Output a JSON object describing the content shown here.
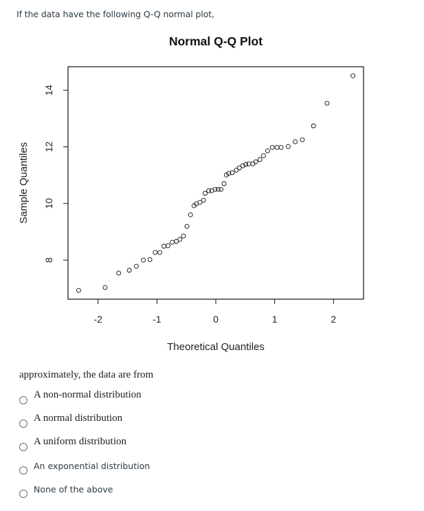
{
  "question": {
    "intro": "If the data have the following Q-Q normal plot,",
    "prompt": "approximately, the data are from",
    "options": [
      {
        "label": "A non-normal distribution",
        "style": "serif",
        "selected": false
      },
      {
        "label": "A normal distribution",
        "style": "serif",
        "selected": false
      },
      {
        "label": "A uniform distribution",
        "style": "serif",
        "selected": false
      },
      {
        "label": "An exponential distribution",
        "style": "sans",
        "selected": false
      },
      {
        "label": "None of the above",
        "style": "sans",
        "selected": false
      }
    ]
  },
  "chart_data": {
    "type": "scatter",
    "title": "Normal Q-Q Plot",
    "xlabel": "Theoretical Quantiles",
    "ylabel": "Sample Quantiles",
    "xlim": [
      -2.51,
      2.51
    ],
    "ylim": [
      6.62,
      14.83
    ],
    "xticks": [
      -2,
      -1,
      0,
      1,
      2
    ],
    "yticks": [
      8,
      10,
      12,
      14
    ],
    "grid": false,
    "legend": null,
    "marker": "open-circle",
    "points": [
      [
        -2.33,
        6.93
      ],
      [
        -1.88,
        7.03
      ],
      [
        -1.65,
        7.54
      ],
      [
        -1.47,
        7.64
      ],
      [
        -1.35,
        7.78
      ],
      [
        -1.23,
        8.0
      ],
      [
        -1.12,
        8.02
      ],
      [
        -1.03,
        8.27
      ],
      [
        -0.95,
        8.27
      ],
      [
        -0.88,
        8.49
      ],
      [
        -0.81,
        8.51
      ],
      [
        -0.74,
        8.63
      ],
      [
        -0.67,
        8.66
      ],
      [
        -0.61,
        8.73
      ],
      [
        -0.55,
        8.85
      ],
      [
        -0.49,
        9.19
      ],
      [
        -0.43,
        9.6
      ],
      [
        -0.37,
        9.92
      ],
      [
        -0.33,
        9.99
      ],
      [
        -0.27,
        10.04
      ],
      [
        -0.21,
        10.11
      ],
      [
        -0.18,
        10.36
      ],
      [
        -0.12,
        10.45
      ],
      [
        -0.07,
        10.45
      ],
      [
        -0.01,
        10.5
      ],
      [
        0.04,
        10.5
      ],
      [
        0.09,
        10.5
      ],
      [
        0.14,
        10.7
      ],
      [
        0.18,
        11.01
      ],
      [
        0.22,
        11.06
      ],
      [
        0.28,
        11.09
      ],
      [
        0.35,
        11.18
      ],
      [
        0.4,
        11.26
      ],
      [
        0.46,
        11.33
      ],
      [
        0.51,
        11.38
      ],
      [
        0.56,
        11.4
      ],
      [
        0.63,
        11.4
      ],
      [
        0.68,
        11.47
      ],
      [
        0.75,
        11.55
      ],
      [
        0.81,
        11.69
      ],
      [
        0.88,
        11.86
      ],
      [
        0.96,
        11.98
      ],
      [
        1.04,
        11.98
      ],
      [
        1.11,
        11.98
      ],
      [
        1.23,
        12.01
      ],
      [
        1.35,
        12.18
      ],
      [
        1.47,
        12.25
      ],
      [
        1.66,
        12.74
      ],
      [
        1.89,
        13.54
      ],
      [
        2.33,
        14.51
      ]
    ]
  }
}
